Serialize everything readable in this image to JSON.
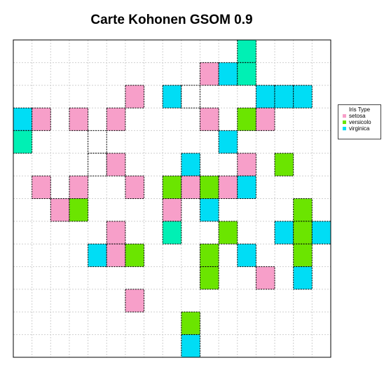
{
  "chart_data": {
    "type": "heatmap",
    "title": "Carte Kohonen GSOM 0.9",
    "grid": {
      "cols": 17,
      "rows": 14,
      "gridlines": true
    },
    "legend": {
      "title": "Iris Type",
      "placement": "right",
      "entries": [
        {
          "name": "setosa",
          "color": "#F79FC9"
        },
        {
          "name": "versicolo",
          "color": "#6BE500"
        },
        {
          "name": "virginica",
          "color": "#00DDF5"
        }
      ]
    },
    "mixed_color": "#00F0B4",
    "nodes": [
      {
        "col": 12,
        "row": 0,
        "class": "mixed"
      },
      {
        "col": 10,
        "row": 1,
        "class": "setosa"
      },
      {
        "col": 11,
        "row": 1,
        "class": "virginica"
      },
      {
        "col": 12,
        "row": 1,
        "class": "mixed"
      },
      {
        "col": 6,
        "row": 2,
        "class": "setosa"
      },
      {
        "col": 8,
        "row": 2,
        "class": "virginica"
      },
      {
        "col": 9,
        "row": 2,
        "class": "empty"
      },
      {
        "col": 13,
        "row": 2,
        "class": "virginica"
      },
      {
        "col": 14,
        "row": 2,
        "class": "virginica"
      },
      {
        "col": 15,
        "row": 2,
        "class": "virginica"
      },
      {
        "col": 0,
        "row": 3,
        "class": "virginica"
      },
      {
        "col": 1,
        "row": 3,
        "class": "setosa"
      },
      {
        "col": 3,
        "row": 3,
        "class": "setosa"
      },
      {
        "col": 5,
        "row": 3,
        "class": "setosa"
      },
      {
        "col": 10,
        "row": 3,
        "class": "setosa"
      },
      {
        "col": 12,
        "row": 3,
        "class": "versicolo"
      },
      {
        "col": 13,
        "row": 3,
        "class": "setosa"
      },
      {
        "col": 0,
        "row": 4,
        "class": "mixed"
      },
      {
        "col": 4,
        "row": 4,
        "class": "empty"
      },
      {
        "col": 11,
        "row": 4,
        "class": "virginica"
      },
      {
        "col": 4,
        "row": 5,
        "class": "empty"
      },
      {
        "col": 5,
        "row": 5,
        "class": "setosa"
      },
      {
        "col": 9,
        "row": 5,
        "class": "virginica"
      },
      {
        "col": 12,
        "row": 5,
        "class": "setosa"
      },
      {
        "col": 14,
        "row": 5,
        "class": "versicolo"
      },
      {
        "col": 1,
        "row": 6,
        "class": "setosa"
      },
      {
        "col": 3,
        "row": 6,
        "class": "setosa"
      },
      {
        "col": 6,
        "row": 6,
        "class": "setosa"
      },
      {
        "col": 8,
        "row": 6,
        "class": "versicolo"
      },
      {
        "col": 9,
        "row": 6,
        "class": "setosa"
      },
      {
        "col": 10,
        "row": 6,
        "class": "versicolo"
      },
      {
        "col": 11,
        "row": 6,
        "class": "setosa"
      },
      {
        "col": 12,
        "row": 6,
        "class": "virginica"
      },
      {
        "col": 2,
        "row": 7,
        "class": "setosa"
      },
      {
        "col": 3,
        "row": 7,
        "class": "versicolo"
      },
      {
        "col": 8,
        "row": 7,
        "class": "setosa"
      },
      {
        "col": 10,
        "row": 7,
        "class": "virginica"
      },
      {
        "col": 15,
        "row": 7,
        "class": "versicolo"
      },
      {
        "col": 5,
        "row": 8,
        "class": "setosa"
      },
      {
        "col": 8,
        "row": 8,
        "class": "mixed"
      },
      {
        "col": 11,
        "row": 8,
        "class": "versicolo"
      },
      {
        "col": 14,
        "row": 8,
        "class": "virginica"
      },
      {
        "col": 15,
        "row": 8,
        "class": "versicolo"
      },
      {
        "col": 16,
        "row": 8,
        "class": "virginica"
      },
      {
        "col": 4,
        "row": 9,
        "class": "virginica"
      },
      {
        "col": 5,
        "row": 9,
        "class": "setosa"
      },
      {
        "col": 6,
        "row": 9,
        "class": "versicolo"
      },
      {
        "col": 10,
        "row": 9,
        "class": "versicolo"
      },
      {
        "col": 12,
        "row": 9,
        "class": "virginica"
      },
      {
        "col": 15,
        "row": 9,
        "class": "versicolo"
      },
      {
        "col": 10,
        "row": 10,
        "class": "versicolo"
      },
      {
        "col": 13,
        "row": 10,
        "class": "setosa"
      },
      {
        "col": 15,
        "row": 10,
        "class": "virginica"
      },
      {
        "col": 6,
        "row": 11,
        "class": "setosa"
      },
      {
        "col": 9,
        "row": 12,
        "class": "versicolo"
      },
      {
        "col": 9,
        "row": 13,
        "class": "virginica"
      }
    ]
  }
}
